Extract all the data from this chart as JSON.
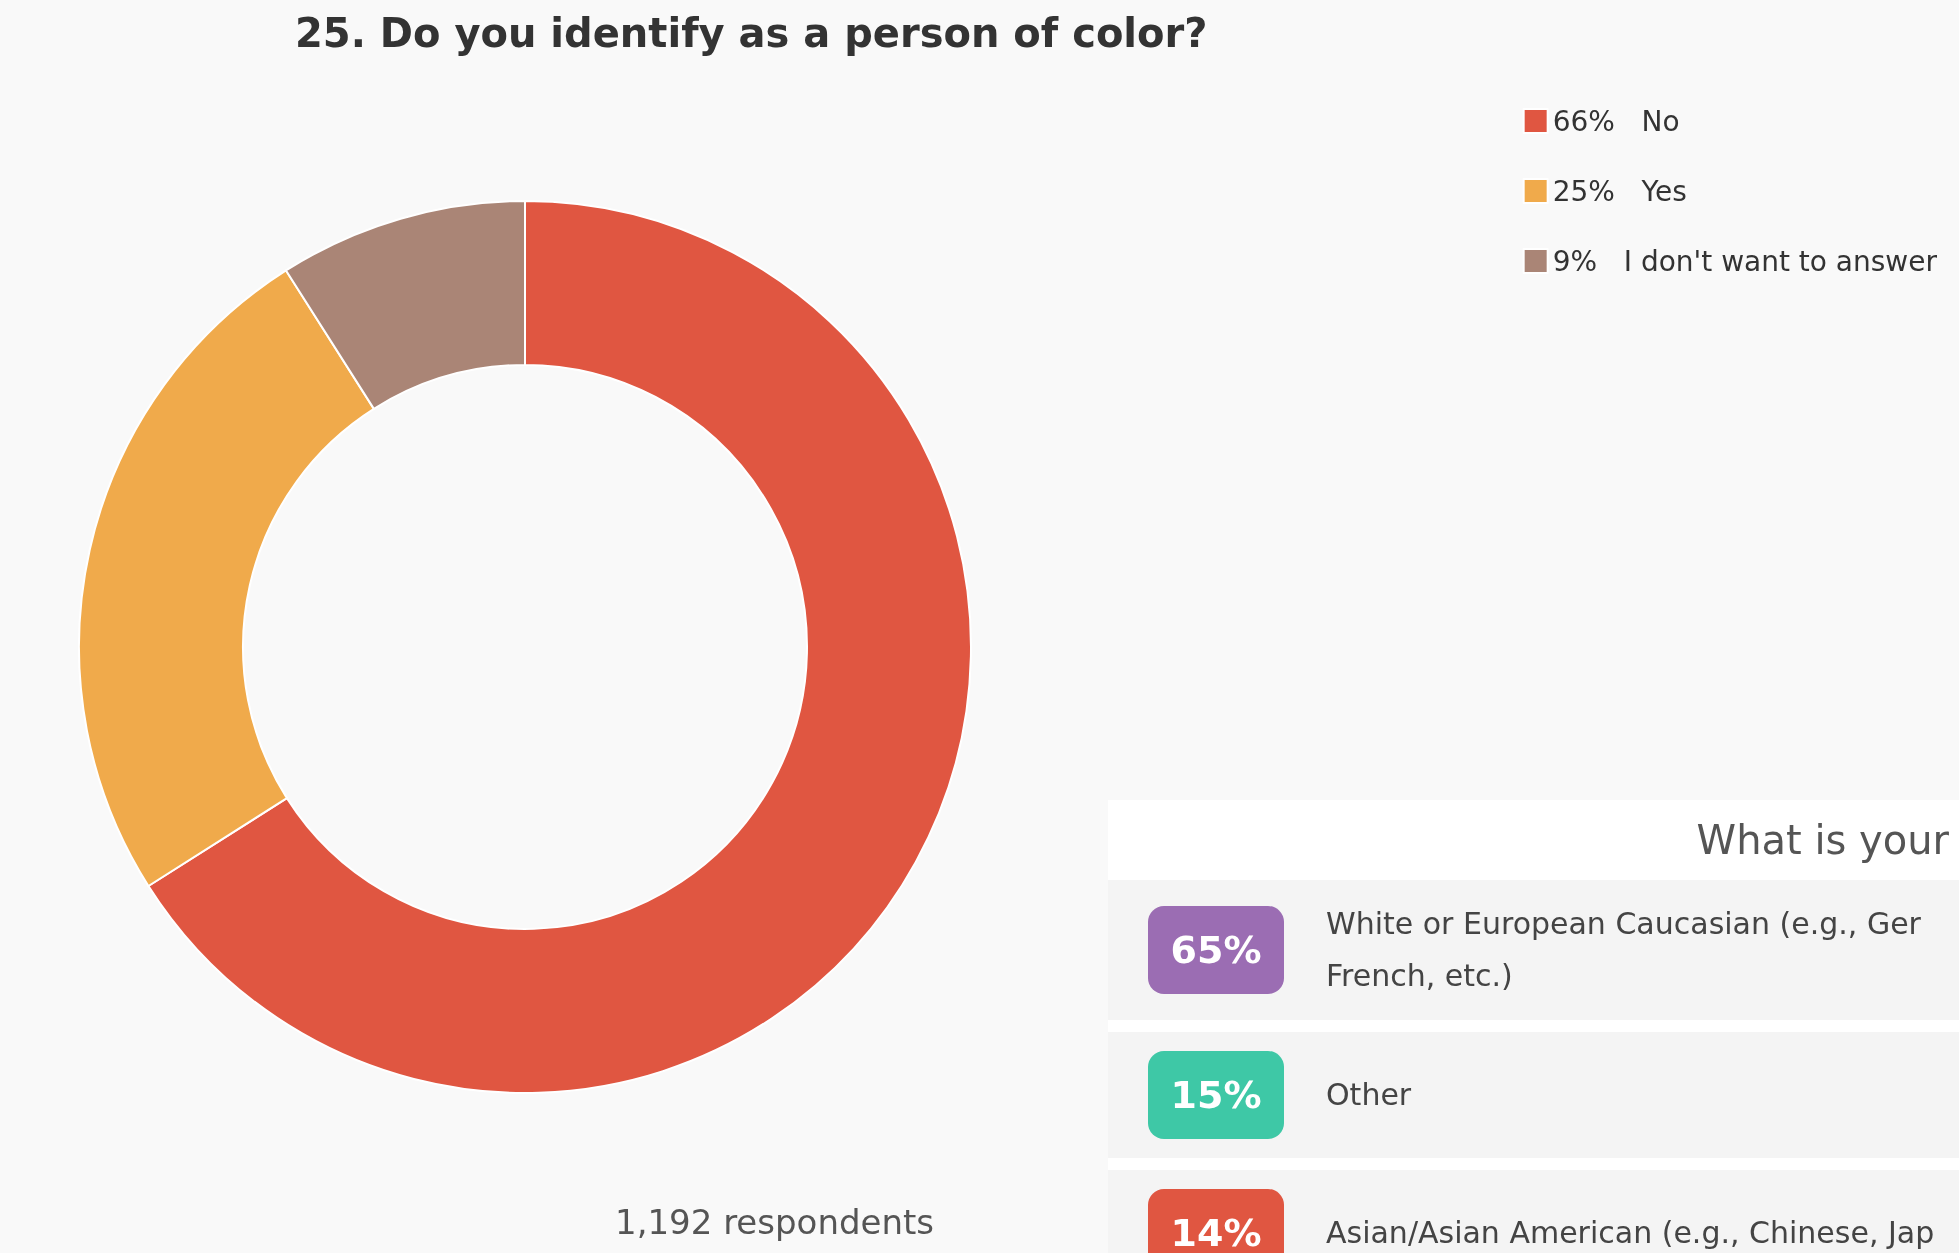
{
  "chart_data": [
    {
      "type": "donut",
      "title": "25. Do you identify as a person of color?",
      "categories": [
        "No",
        "Yes",
        "I don't want to answer"
      ],
      "values": [
        66,
        25,
        9
      ],
      "value_labels": [
        "66%",
        "25%",
        "9%"
      ],
      "colors": [
        "#e05641",
        "#f0aa4b",
        "#aa8576"
      ],
      "legend": "top right",
      "annotations": [
        "1,192 respondents"
      ]
    },
    {
      "type": "other",
      "title": "What is your",
      "categories": [
        "White or European Caucasian (e.g., Ger\nFrench, etc.)",
        "Other",
        "Asian/Asian American (e.g., Chinese, Jap"
      ],
      "value_labels": [
        "65%",
        "15%",
        "14%"
      ]
    }
  ]
}
